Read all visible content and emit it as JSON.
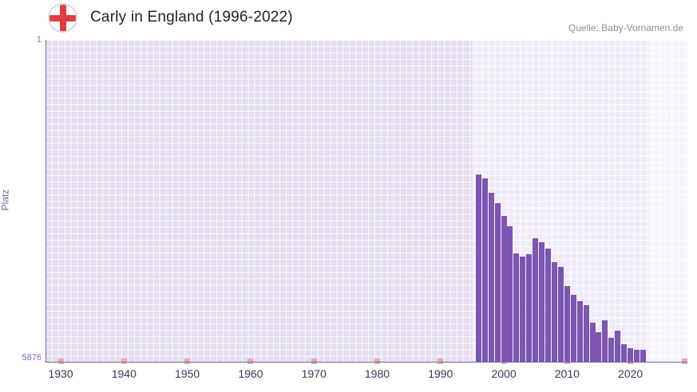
{
  "header": {
    "title": "Carly in England (1996-2022)",
    "source": "Quelle: Baby-Vornamen.de"
  },
  "axes": {
    "y_label": "Platz",
    "y_tick_top": "1",
    "y_tick_bottom": "5876"
  },
  "colors": {
    "bar": "#7d55b2",
    "plot_background": "#e3ddef",
    "grid_line": "#ffffff",
    "decade_marker": "#f2a6b2",
    "axis_line": "#7462a8",
    "flag_cross_red": "#e13b40",
    "title_text": "#23222e",
    "source_text": "#8f8f98",
    "x_tick_text": "#3d3659",
    "y_tick_text": "#8a67bd"
  },
  "chart_data": {
    "type": "bar",
    "title": "Carly in England (1996-2022)",
    "xlabel": "",
    "ylabel": "Platz",
    "y_axis_inverted": true,
    "ylim": [
      1,
      5876
    ],
    "y_ticks": [
      1,
      5876
    ],
    "x_ticks": [
      1930,
      1940,
      1950,
      1960,
      1970,
      1980,
      1990,
      2000,
      2010,
      2020
    ],
    "x_display_range": [
      1927.6,
      2029
    ],
    "grid": true,
    "legend_position": "none",
    "highlight_band_years": [
      1995,
      2023
    ],
    "right_band_years": [
      2023,
      2029
    ],
    "years": [
      1996,
      1997,
      1998,
      1999,
      2000,
      2001,
      2002,
      2003,
      2004,
      2005,
      2006,
      2007,
      2008,
      2009,
      2010,
      2011,
      2012,
      2013,
      2014,
      2015,
      2016,
      2017,
      2018,
      2019,
      2020,
      2021,
      2022
    ],
    "ranks": [
      2450,
      2520,
      2780,
      2970,
      3200,
      3400,
      3890,
      3950,
      3900,
      3620,
      3680,
      3800,
      4050,
      4130,
      4480,
      4640,
      4760,
      4830,
      5150,
      5330,
      5100,
      5430,
      5290,
      5540,
      5610,
      5650,
      5650
    ]
  }
}
